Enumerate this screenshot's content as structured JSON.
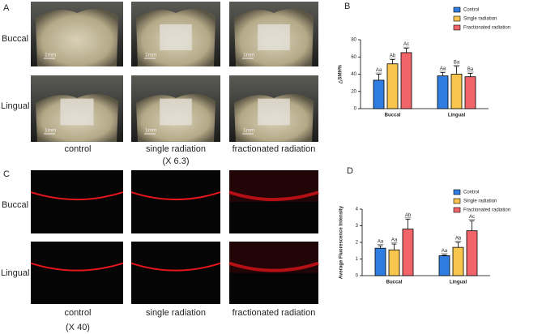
{
  "panels": {
    "a": "A",
    "b": "B",
    "c": "C",
    "d": "D"
  },
  "rows": [
    "Buccal",
    "Lingual"
  ],
  "columns": [
    "control",
    "single radiation",
    "fractionated radiation"
  ],
  "magnification_photos": "(X 6.3)",
  "magnification_fluorescence": "(X 40)",
  "scale_label": "1mm",
  "chart_data": [
    {
      "type": "bar",
      "ylabel": "△SMH%",
      "categories": [
        "Buccal",
        "Lingual"
      ],
      "ylim": [
        0,
        80
      ],
      "yticks": [
        0,
        20,
        40,
        60,
        80
      ],
      "series": [
        {
          "name": "Control",
          "color": "#2f7de1",
          "values": [
            33,
            38
          ],
          "error": [
            7,
            4
          ],
          "letters": [
            "Aa",
            "Aa"
          ]
        },
        {
          "name": "Single radiation",
          "color": "#f8c64c",
          "values": [
            52,
            40
          ],
          "error": [
            5,
            9
          ],
          "letters": [
            "Ab",
            "Ba"
          ]
        },
        {
          "name": "Fractionated radiation",
          "color": "#f0646a",
          "values": [
            65,
            37
          ],
          "error": [
            5,
            4
          ],
          "letters": [
            "Ac",
            "Ba"
          ]
        }
      ]
    },
    {
      "type": "bar",
      "ylabel": "Average Fluorescence Intensity",
      "categories": [
        "Buccal",
        "Lingual"
      ],
      "ylim": [
        0,
        4
      ],
      "yticks": [
        0,
        1,
        2,
        3,
        4
      ],
      "series": [
        {
          "name": "Control",
          "color": "#2f7de1",
          "values": [
            1.65,
            1.2
          ],
          "error": [
            0.15,
            0.05
          ],
          "letters": [
            "Aa",
            "Aa"
          ]
        },
        {
          "name": "Single radiation",
          "color": "#f8c64c",
          "values": [
            1.55,
            1.7
          ],
          "error": [
            0.35,
            0.3
          ],
          "letters": [
            "Aa",
            "Ab"
          ]
        },
        {
          "name": "Fractionated radiation",
          "color": "#f0646a",
          "values": [
            2.8,
            2.7
          ],
          "error": [
            0.6,
            0.6
          ],
          "letters": [
            "Ab",
            "Ac"
          ]
        }
      ]
    }
  ]
}
